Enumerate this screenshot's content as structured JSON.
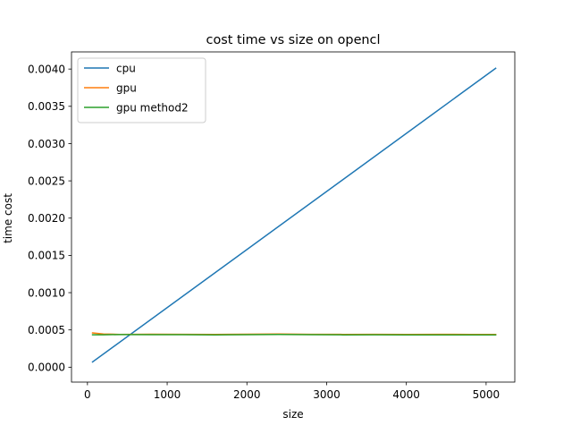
{
  "chart_data": {
    "type": "line",
    "title": "cost time vs size on opencl",
    "xlabel": "size",
    "ylabel": "time cost",
    "xlim": [
      -200,
      5360
    ],
    "ylim": [
      -0.0002,
      0.00423
    ],
    "xticks": [
      0,
      1000,
      2000,
      3000,
      4000,
      5000
    ],
    "xtick_labels": [
      "0",
      "1000",
      "2000",
      "3000",
      "4000",
      "5000"
    ],
    "yticks": [
      0.0,
      0.0005,
      0.001,
      0.0015,
      0.002,
      0.0025,
      0.003,
      0.0035,
      0.004
    ],
    "ytick_labels": [
      "0.0000",
      "0.0005",
      "0.0010",
      "0.0015",
      "0.0020",
      "0.0025",
      "0.0030",
      "0.0035",
      "0.0040"
    ],
    "grid": false,
    "legend_position": "top-left",
    "series": [
      {
        "name": "cpu",
        "color": "#1f77b4",
        "x": [
          64,
          5120
        ],
        "y": [
          7e-05,
          0.00401
        ]
      },
      {
        "name": "gpu",
        "color": "#ff7f0e",
        "x": [
          64,
          200,
          400,
          800,
          1200,
          1600,
          2000,
          2400,
          2800,
          3200,
          3600,
          4000,
          4400,
          4800,
          5120
        ],
        "y": [
          0.00046,
          0.000445,
          0.00044,
          0.000442,
          0.000441,
          0.00044,
          0.000443,
          0.000445,
          0.000441,
          0.00044,
          0.000441,
          0.00044,
          0.000441,
          0.00044,
          0.00044
        ]
      },
      {
        "name": "gpu method2",
        "color": "#2ca02c",
        "x": [
          64,
          200,
          400,
          800,
          1200,
          1600,
          2000,
          2400,
          2800,
          3200,
          3600,
          4000,
          4400,
          4800,
          5120
        ],
        "y": [
          0.000435,
          0.000435,
          0.000438,
          0.000437,
          0.000436,
          0.000434,
          0.000437,
          0.000439,
          0.000436,
          0.000434,
          0.000435,
          0.000434,
          0.000434,
          0.000434,
          0.000434
        ]
      }
    ]
  }
}
